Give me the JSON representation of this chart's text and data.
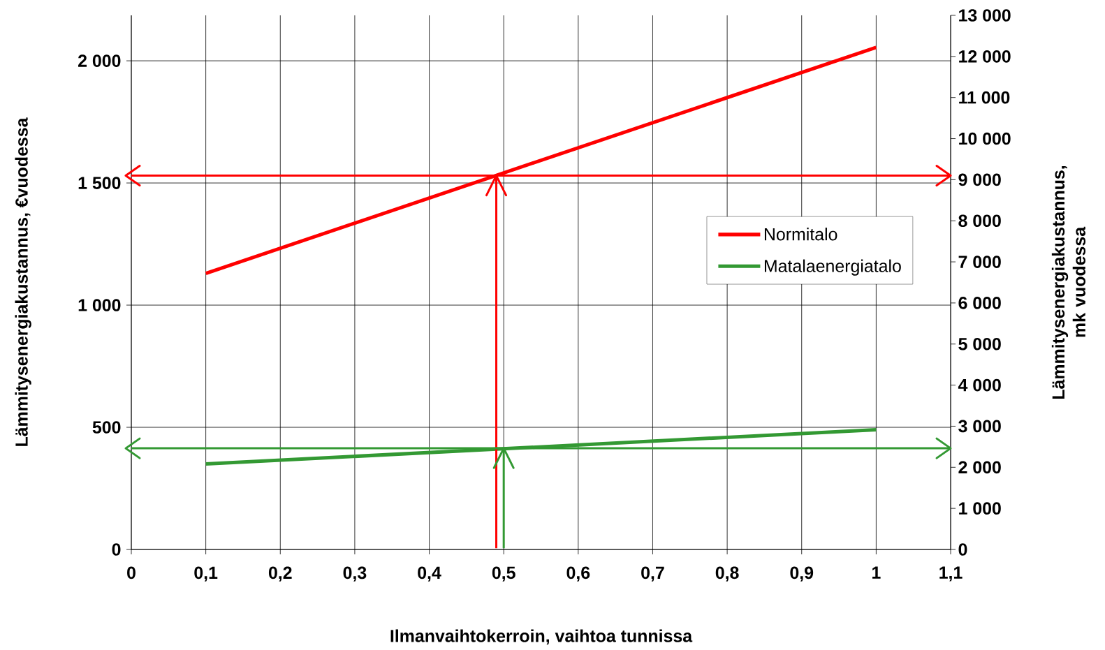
{
  "chart_data": {
    "type": "line",
    "xlabel": "Ilmanvaihtokerroin, vaihtoa tunnissa",
    "ylabel": "Lämmitysenergiakustannus, €vuodessa",
    "y2label": "Lämmitysenergiakustannus, mk vuodessa",
    "x": [
      0.1,
      1
    ],
    "series": [
      {
        "name": "Normitalo",
        "color": "#ff0000",
        "values": [
          1130,
          2055
        ]
      },
      {
        "name": "Matalaenergiatalo",
        "color": "#339933",
        "values": [
          350,
          490
        ]
      }
    ],
    "xlim": [
      0,
      1.1
    ],
    "xticks": [
      0,
      {
        "value": 0.1,
        "label": "0,1"
      },
      {
        "value": 0.2,
        "label": "0,2"
      },
      {
        "value": 0.3,
        "label": "0,3"
      },
      {
        "value": 0.4,
        "label": "0,4"
      },
      {
        "value": 0.5,
        "label": "0,5"
      },
      {
        "value": 0.6,
        "label": "0,6"
      },
      {
        "value": 0.7,
        "label": "0,7"
      },
      {
        "value": 0.8,
        "label": "0,8"
      },
      {
        "value": 0.9,
        "label": "0,9"
      },
      1,
      {
        "value": 1.1,
        "label": "1,1"
      }
    ],
    "ylim": [
      0,
      2186
    ],
    "yticks": [
      0,
      500,
      {
        "value": 1000,
        "label": "1 000"
      },
      {
        "value": 1500,
        "label": "1 500"
      },
      {
        "value": 2000,
        "label": "2 000"
      }
    ],
    "y2lim": [
      0,
      13000
    ],
    "y2ticks": [
      0,
      {
        "value": 1000,
        "label": "1 000"
      },
      {
        "value": 2000,
        "label": "2 000"
      },
      {
        "value": 3000,
        "label": "3 000"
      },
      {
        "value": 4000,
        "label": "4 000"
      },
      {
        "value": 5000,
        "label": "5 000"
      },
      {
        "value": 6000,
        "label": "6 000"
      },
      {
        "value": 7000,
        "label": "7 000"
      },
      {
        "value": 8000,
        "label": "8 000"
      },
      {
        "value": 9000,
        "label": "9 000"
      },
      {
        "value": 10000,
        "label": "10 000"
      },
      {
        "value": 11000,
        "label": "11 000"
      },
      {
        "value": 12000,
        "label": "12 000"
      },
      {
        "value": 13000,
        "label": "13 000"
      }
    ],
    "ref_lines": [
      {
        "axis": "y",
        "value": 1530,
        "color": "#ff0000"
      },
      {
        "axis": "x",
        "value": 0.49,
        "color": "#ff0000"
      },
      {
        "axis": "y",
        "value": 414,
        "color": "#339933"
      },
      {
        "axis": "x",
        "value": 0.5,
        "color": "#339933"
      }
    ],
    "grid": true,
    "legend": "right",
    "marker": "none",
    "line_style": "solid"
  }
}
